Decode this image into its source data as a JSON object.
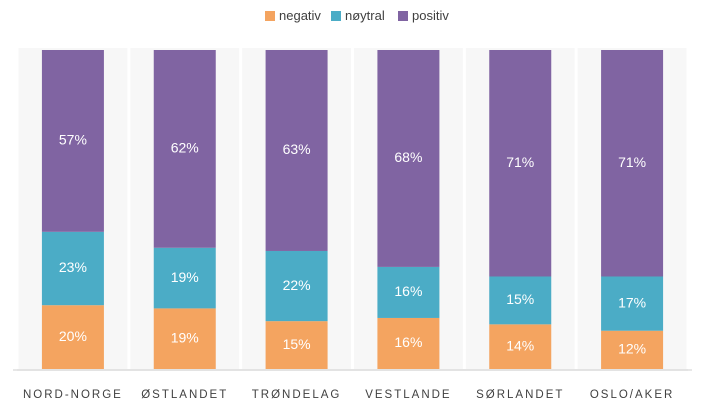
{
  "chart_data": {
    "type": "bar",
    "stacked": true,
    "percent": true,
    "categories": [
      "NORD-NORGE",
      "ØSTLANDET",
      "TRØNDELAG",
      "VESTLANDE",
      "SØRLANDET",
      "OSLO/AKER"
    ],
    "series": [
      {
        "name": "negativ",
        "color": "#f4a460",
        "values": [
          20,
          19,
          15,
          16,
          14,
          12
        ]
      },
      {
        "name": "nøytral",
        "color": "#4bacc6",
        "values": [
          23,
          19,
          22,
          16,
          15,
          17
        ]
      },
      {
        "name": "positiv",
        "color": "#8064a2",
        "values": [
          57,
          62,
          63,
          68,
          71,
          71
        ]
      }
    ],
    "value_format": "{v}%",
    "ylim": [
      0,
      100
    ],
    "legend_position": "top",
    "grid": false
  }
}
